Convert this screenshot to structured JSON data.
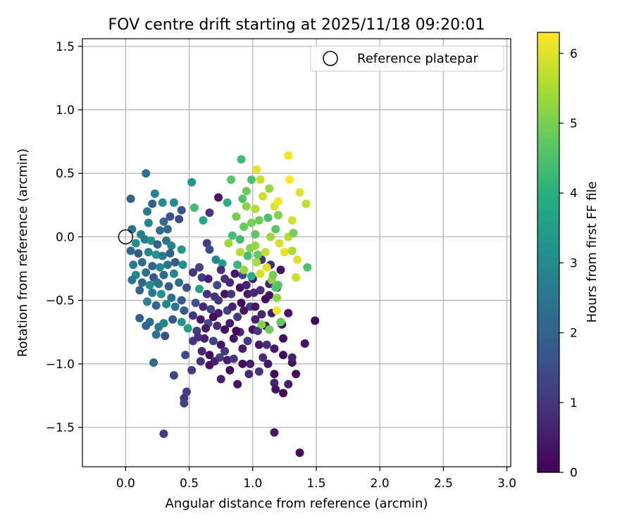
{
  "chart_data": {
    "type": "scatter",
    "title": "FOV centre drift starting at 2025/11/18 09:20:01",
    "xlabel": "Angular distance from reference (arcmin)",
    "ylabel": "Rotation from reference (arcmin)",
    "xlim": [
      -0.34,
      3.03
    ],
    "ylim": [
      -1.81,
      1.56
    ],
    "x_ticks": [
      0.0,
      0.5,
      1.0,
      1.5,
      2.0,
      2.5,
      3.0
    ],
    "x_tick_labels": [
      "0.0",
      "0.5",
      "1.0",
      "1.5",
      "2.0",
      "2.5",
      "3.0"
    ],
    "y_ticks": [
      -1.5,
      -1.0,
      -0.5,
      0.0,
      0.5,
      1.0,
      1.5
    ],
    "y_tick_labels": [
      "−1.5",
      "−1.0",
      "−0.5",
      "0.0",
      "0.5",
      "1.0",
      "1.5"
    ],
    "grid": true,
    "colorbar": {
      "label": "Hours from first FF file",
      "colormap": "viridis",
      "range": [
        0,
        6.3
      ],
      "ticks": [
        0,
        1,
        2,
        3,
        4,
        5,
        6
      ],
      "tick_labels": [
        "0",
        "1",
        "2",
        "3",
        "4",
        "5",
        "6"
      ]
    },
    "reference": {
      "label": "Reference platepar",
      "x": 0.0,
      "y": 0.0
    },
    "legend": {
      "position": "top-right",
      "entries": [
        "Reference platepar"
      ]
    },
    "points": [
      {
        "x": 0.16,
        "y": 0.5,
        "c": 2.4
      },
      {
        "x": 0.23,
        "y": 0.34,
        "c": 2.8
      },
      {
        "x": 0.04,
        "y": 0.3,
        "c": 2.0
      },
      {
        "x": 0.29,
        "y": 0.27,
        "c": 3.0
      },
      {
        "x": 0.38,
        "y": 0.27,
        "c": 3.1
      },
      {
        "x": 0.44,
        "y": 0.21,
        "c": 1.7
      },
      {
        "x": 0.21,
        "y": 0.26,
        "c": 1.9
      },
      {
        "x": 0.17,
        "y": 0.2,
        "c": 2.6
      },
      {
        "x": 0.18,
        "y": 0.11,
        "c": 2.9
      },
      {
        "x": 0.3,
        "y": 0.12,
        "c": 2.2
      },
      {
        "x": 0.35,
        "y": 0.16,
        "c": 1.6
      },
      {
        "x": 0.42,
        "y": 0.14,
        "c": 1.5
      },
      {
        "x": 0.27,
        "y": 0.05,
        "c": 2.3
      },
      {
        "x": 0.33,
        "y": 0.06,
        "c": 2.1
      },
      {
        "x": 0.05,
        "y": 0.06,
        "c": 2.5
      },
      {
        "x": 0.12,
        "y": 0.02,
        "c": 2.7
      },
      {
        "x": 0.08,
        "y": -0.05,
        "c": 3.2
      },
      {
        "x": 0.15,
        "y": -0.02,
        "c": 2.6
      },
      {
        "x": 0.2,
        "y": -0.03,
        "c": 3.1
      },
      {
        "x": 0.25,
        "y": -0.06,
        "c": 2.0
      },
      {
        "x": 0.32,
        "y": -0.03,
        "c": 2.4
      },
      {
        "x": 0.36,
        "y": -0.07,
        "c": 2.8
      },
      {
        "x": 0.04,
        "y": -0.11,
        "c": 2.2
      },
      {
        "x": 0.1,
        "y": -0.13,
        "c": 1.8
      },
      {
        "x": 0.18,
        "y": -0.12,
        "c": 2.9
      },
      {
        "x": 0.24,
        "y": -0.14,
        "c": 3.3
      },
      {
        "x": 0.29,
        "y": -0.15,
        "c": 2.6
      },
      {
        "x": 0.35,
        "y": -0.13,
        "c": 1.9
      },
      {
        "x": 0.44,
        "y": -0.1,
        "c": 3.4
      },
      {
        "x": 0.06,
        "y": -0.22,
        "c": 2.7
      },
      {
        "x": 0.13,
        "y": -0.2,
        "c": 2.3
      },
      {
        "x": 0.21,
        "y": -0.23,
        "c": 2.0
      },
      {
        "x": 0.27,
        "y": -0.24,
        "c": 3.0
      },
      {
        "x": 0.33,
        "y": -0.22,
        "c": 2.5
      },
      {
        "x": 0.39,
        "y": -0.2,
        "c": 1.7
      },
      {
        "x": 0.45,
        "y": -0.22,
        "c": 3.1
      },
      {
        "x": 0.08,
        "y": -0.3,
        "c": 2.9
      },
      {
        "x": 0.16,
        "y": -0.28,
        "c": 2.4
      },
      {
        "x": 0.22,
        "y": -0.32,
        "c": 1.6
      },
      {
        "x": 0.3,
        "y": -0.3,
        "c": 2.2
      },
      {
        "x": 0.38,
        "y": -0.29,
        "c": 2.8
      },
      {
        "x": 0.05,
        "y": -0.34,
        "c": 2.5
      },
      {
        "x": 0.13,
        "y": -0.36,
        "c": 2.1
      },
      {
        "x": 0.19,
        "y": -0.38,
        "c": 3.0
      },
      {
        "x": 0.26,
        "y": -0.37,
        "c": 2.7
      },
      {
        "x": 0.34,
        "y": -0.39,
        "c": 1.8
      },
      {
        "x": 0.42,
        "y": -0.36,
        "c": 2.3
      },
      {
        "x": 0.48,
        "y": -0.4,
        "c": 1.5
      },
      {
        "x": 0.11,
        "y": -0.42,
        "c": 2.0
      },
      {
        "x": 0.21,
        "y": -0.44,
        "c": 2.6
      },
      {
        "x": 0.28,
        "y": -0.45,
        "c": 3.2
      },
      {
        "x": 0.36,
        "y": -0.48,
        "c": 2.4
      },
      {
        "x": 0.44,
        "y": -0.5,
        "c": 1.9
      },
      {
        "x": 0.17,
        "y": -0.51,
        "c": 2.8
      },
      {
        "x": 0.24,
        "y": -0.54,
        "c": 2.2
      },
      {
        "x": 0.32,
        "y": -0.53,
        "c": 3.0
      },
      {
        "x": 0.39,
        "y": -0.55,
        "c": 2.5
      },
      {
        "x": 0.46,
        "y": -0.58,
        "c": 1.8
      },
      {
        "x": 0.11,
        "y": -0.64,
        "c": 1.9
      },
      {
        "x": 0.19,
        "y": -0.67,
        "c": 2.3
      },
      {
        "x": 0.26,
        "y": -0.71,
        "c": 2.6
      },
      {
        "x": 0.3,
        "y": -0.68,
        "c": 2.9
      },
      {
        "x": 0.37,
        "y": -0.65,
        "c": 1.7
      },
      {
        "x": 0.44,
        "y": -0.67,
        "c": 3.3
      },
      {
        "x": 0.49,
        "y": -0.72,
        "c": 3.5
      },
      {
        "x": 0.16,
        "y": -0.7,
        "c": 2.1
      },
      {
        "x": 0.24,
        "y": -0.77,
        "c": 2.4
      },
      {
        "x": 0.31,
        "y": -0.78,
        "c": 1.6
      },
      {
        "x": 0.22,
        "y": -0.99,
        "c": 2.2
      },
      {
        "x": 0.38,
        "y": -1.09,
        "c": 1.3
      },
      {
        "x": 0.3,
        "y": -1.55,
        "c": 1.1
      },
      {
        "x": 0.25,
        "y": -0.36,
        "c": 2.5
      },
      {
        "x": 0.52,
        "y": 0.43,
        "c": 3.3
      },
      {
        "x": 0.54,
        "y": 0.23,
        "c": 4.4
      },
      {
        "x": 0.61,
        "y": 0.13,
        "c": 3.8
      },
      {
        "x": 0.66,
        "y": 0.19,
        "c": 1.0
      },
      {
        "x": 0.73,
        "y": 0.31,
        "c": 0.4
      },
      {
        "x": 0.64,
        "y": -0.05,
        "c": 1.1
      },
      {
        "x": 0.58,
        "y": -0.24,
        "c": 1.3
      },
      {
        "x": 0.66,
        "y": -0.1,
        "c": 1.5
      },
      {
        "x": 0.71,
        "y": -0.18,
        "c": 2.9
      },
      {
        "x": 0.76,
        "y": -0.21,
        "c": 3.5
      },
      {
        "x": 0.75,
        "y": -0.26,
        "c": 0.8
      },
      {
        "x": 0.53,
        "y": -0.28,
        "c": 1.0
      },
      {
        "x": 0.6,
        "y": -0.32,
        "c": 1.2
      },
      {
        "x": 0.65,
        "y": -0.33,
        "c": 0.6
      },
      {
        "x": 0.72,
        "y": -0.38,
        "c": 1.4
      },
      {
        "x": 0.58,
        "y": -0.41,
        "c": 3.7
      },
      {
        "x": 0.64,
        "y": -0.45,
        "c": 0.9
      },
      {
        "x": 0.7,
        "y": -0.47,
        "c": 1.1
      },
      {
        "x": 0.78,
        "y": -0.45,
        "c": 0.3
      },
      {
        "x": 0.55,
        "y": -0.52,
        "c": 1.6
      },
      {
        "x": 0.61,
        "y": -0.55,
        "c": 0.7
      },
      {
        "x": 0.67,
        "y": -0.57,
        "c": 1.2
      },
      {
        "x": 0.73,
        "y": -0.6,
        "c": 0.5
      },
      {
        "x": 0.8,
        "y": -0.58,
        "c": 1.3
      },
      {
        "x": 0.53,
        "y": -0.62,
        "c": 1.0
      },
      {
        "x": 0.59,
        "y": -0.65,
        "c": 0.4
      },
      {
        "x": 0.65,
        "y": -0.68,
        "c": 1.5
      },
      {
        "x": 0.72,
        "y": -0.7,
        "c": 0.8
      },
      {
        "x": 0.78,
        "y": -0.73,
        "c": 0.2
      },
      {
        "x": 0.56,
        "y": -0.74,
        "c": 1.1
      },
      {
        "x": 0.62,
        "y": -0.8,
        "c": 0.6
      },
      {
        "x": 0.69,
        "y": -0.82,
        "c": 1.3
      },
      {
        "x": 0.75,
        "y": -0.85,
        "c": 0.4
      },
      {
        "x": 0.53,
        "y": -0.82,
        "c": 1.0
      },
      {
        "x": 0.6,
        "y": -0.9,
        "c": 0.7
      },
      {
        "x": 0.66,
        "y": -0.93,
        "c": 0.3
      },
      {
        "x": 0.74,
        "y": -0.95,
        "c": 1.2
      },
      {
        "x": 0.8,
        "y": -0.97,
        "c": 0.5
      },
      {
        "x": 0.59,
        "y": -0.98,
        "c": 0.9
      },
      {
        "x": 0.66,
        "y": -1.01,
        "c": 0.3
      },
      {
        "x": 0.52,
        "y": -1.05,
        "c": 1.1
      },
      {
        "x": 0.75,
        "y": -1.12,
        "c": 0.6
      },
      {
        "x": 0.82,
        "y": -1.05,
        "c": 0.2
      },
      {
        "x": 0.48,
        "y": -1.22,
        "c": 1.2
      },
      {
        "x": 0.46,
        "y": -1.27,
        "c": 1.0
      },
      {
        "x": 0.46,
        "y": -1.31,
        "c": 1.3
      },
      {
        "x": 0.47,
        "y": -0.93,
        "c": 1.5
      },
      {
        "x": 0.78,
        "y": -0.9,
        "c": 1.0
      },
      {
        "x": 0.85,
        "y": -0.8,
        "c": 0.4
      },
      {
        "x": 0.9,
        "y": -0.75,
        "c": 0.8
      },
      {
        "x": 0.82,
        "y": -0.68,
        "c": 0.5
      },
      {
        "x": 0.88,
        "y": -0.63,
        "c": 1.1
      },
      {
        "x": 0.84,
        "y": -0.55,
        "c": 0.6
      },
      {
        "x": 0.91,
        "y": -0.52,
        "c": 0.2
      },
      {
        "x": 0.83,
        "y": -0.45,
        "c": 1.0
      },
      {
        "x": 0.9,
        "y": -0.4,
        "c": 0.3
      },
      {
        "x": 0.82,
        "y": -0.36,
        "c": 0.7
      },
      {
        "x": 0.92,
        "y": -0.3,
        "c": 1.4
      },
      {
        "x": 0.96,
        "y": -0.45,
        "c": 0.5
      },
      {
        "x": 0.98,
        "y": -0.55,
        "c": 1.2
      },
      {
        "x": 1.02,
        "y": -0.65,
        "c": 0.6
      },
      {
        "x": 1.0,
        "y": -0.73,
        "c": 0.3
      },
      {
        "x": 0.96,
        "y": -0.82,
        "c": 1.0
      },
      {
        "x": 1.05,
        "y": -0.85,
        "c": 0.4
      },
      {
        "x": 1.08,
        "y": -0.95,
        "c": 0.8
      },
      {
        "x": 0.98,
        "y": -1.0,
        "c": 0.5
      },
      {
        "x": 0.92,
        "y": -1.0,
        "c": 0.2
      },
      {
        "x": 0.97,
        "y": -1.08,
        "c": 0.7
      },
      {
        "x": 0.88,
        "y": -1.16,
        "c": 0.3
      },
      {
        "x": 1.05,
        "y": -1.06,
        "c": 0.9
      },
      {
        "x": 1.12,
        "y": -1.0,
        "c": 0.4
      },
      {
        "x": 1.17,
        "y": -1.08,
        "c": 0.2
      },
      {
        "x": 1.17,
        "y": -1.15,
        "c": 0.6
      },
      {
        "x": 1.18,
        "y": -1.2,
        "c": 0.3
      },
      {
        "x": 1.24,
        "y": -1.23,
        "c": 0.1
      },
      {
        "x": 1.28,
        "y": -1.16,
        "c": 0.5
      },
      {
        "x": 1.34,
        "y": -1.08,
        "c": 0.2
      },
      {
        "x": 1.31,
        "y": -0.99,
        "c": 0.3
      },
      {
        "x": 1.31,
        "y": -0.95,
        "c": 0.6
      },
      {
        "x": 1.24,
        "y": -0.93,
        "c": 0.2
      },
      {
        "x": 1.17,
        "y": -0.88,
        "c": 0.4
      },
      {
        "x": 1.11,
        "y": -0.85,
        "c": 0.8
      },
      {
        "x": 1.04,
        "y": -0.74,
        "c": 1.0
      },
      {
        "x": 1.1,
        "y": -0.7,
        "c": 0.3
      },
      {
        "x": 1.15,
        "y": -0.6,
        "c": 0.5
      },
      {
        "x": 1.23,
        "y": -0.69,
        "c": 0.2
      },
      {
        "x": 1.28,
        "y": -0.6,
        "c": 0.4
      },
      {
        "x": 1.41,
        "y": -0.84,
        "c": 0.3
      },
      {
        "x": 1.49,
        "y": -0.66,
        "c": 0.1
      },
      {
        "x": 1.24,
        "y": -0.8,
        "c": 0.2
      },
      {
        "x": 1.17,
        "y": -1.54,
        "c": 0.4
      },
      {
        "x": 1.37,
        "y": -1.7,
        "c": 0.2
      },
      {
        "x": 1.13,
        "y": -0.37,
        "c": 0.6
      },
      {
        "x": 1.06,
        "y": -0.42,
        "c": 0.9
      },
      {
        "x": 1.1,
        "y": -0.49,
        "c": 0.2
      },
      {
        "x": 1.02,
        "y": -0.55,
        "c": 0.4
      },
      {
        "x": 1.07,
        "y": -0.61,
        "c": 0.7
      },
      {
        "x": 1.13,
        "y": -0.46,
        "c": 0.3
      },
      {
        "x": 1.19,
        "y": -0.4,
        "c": 0.5
      },
      {
        "x": 1.22,
        "y": -0.26,
        "c": 0.3
      },
      {
        "x": 1.14,
        "y": -0.22,
        "c": 0.8
      },
      {
        "x": 1.07,
        "y": -0.18,
        "c": 1.0
      },
      {
        "x": 1.0,
        "y": -0.33,
        "c": 0.2
      },
      {
        "x": 0.95,
        "y": -0.38,
        "c": 0.6
      },
      {
        "x": 0.86,
        "y": -0.29,
        "c": 0.4
      },
      {
        "x": 0.78,
        "y": -0.33,
        "c": 0.9
      },
      {
        "x": 0.73,
        "y": -0.5,
        "c": 1.1
      },
      {
        "x": 0.69,
        "y": -0.63,
        "c": 0.2
      },
      {
        "x": 0.63,
        "y": -0.72,
        "c": 0.5
      },
      {
        "x": 0.57,
        "y": -0.79,
        "c": 0.8
      },
      {
        "x": 0.7,
        "y": -0.98,
        "c": 0.6
      },
      {
        "x": 0.85,
        "y": -0.96,
        "c": 1.0
      },
      {
        "x": 0.92,
        "y": -0.88,
        "c": 0.5
      },
      {
        "x": 0.87,
        "y": -0.74,
        "c": 0.1
      },
      {
        "x": 0.93,
        "y": -0.58,
        "c": 0.4
      },
      {
        "x": 1.01,
        "y": -0.44,
        "c": 0.7
      },
      {
        "x": 0.8,
        "y": 0.27,
        "c": 4.0
      },
      {
        "x": 0.83,
        "y": 0.45,
        "c": 4.6
      },
      {
        "x": 0.91,
        "y": 0.61,
        "c": 4.3
      },
      {
        "x": 0.87,
        "y": 0.16,
        "c": 5.0
      },
      {
        "x": 0.84,
        "y": 0.01,
        "c": 4.4
      },
      {
        "x": 0.81,
        "y": -0.05,
        "c": 5.4
      },
      {
        "x": 0.93,
        "y": 0.08,
        "c": 4.8
      },
      {
        "x": 0.92,
        "y": 0.3,
        "c": 4.6
      },
      {
        "x": 0.95,
        "y": 0.24,
        "c": 5.2
      },
      {
        "x": 0.99,
        "y": 0.45,
        "c": 4.5
      },
      {
        "x": 1.03,
        "y": 0.53,
        "c": 6.1
      },
      {
        "x": 1.06,
        "y": 0.45,
        "c": 5.8
      },
      {
        "x": 1.05,
        "y": 0.13,
        "c": 4.9
      },
      {
        "x": 1.02,
        "y": 0.02,
        "c": 4.7
      },
      {
        "x": 0.98,
        "y": -0.09,
        "c": 5.1
      },
      {
        "x": 1.04,
        "y": -0.14,
        "c": 4.8
      },
      {
        "x": 0.96,
        "y": -0.15,
        "c": 4.4
      },
      {
        "x": 0.9,
        "y": -0.12,
        "c": 5.6
      },
      {
        "x": 0.88,
        "y": -0.22,
        "c": 4.2
      },
      {
        "x": 0.93,
        "y": -0.26,
        "c": 5.3
      },
      {
        "x": 0.99,
        "y": -0.31,
        "c": 4.0
      },
      {
        "x": 1.03,
        "y": -0.2,
        "c": 5.5
      },
      {
        "x": 1.1,
        "y": -0.12,
        "c": 5.7
      },
      {
        "x": 1.11,
        "y": -0.24,
        "c": 6.0
      },
      {
        "x": 1.15,
        "y": -0.34,
        "c": 5.2
      },
      {
        "x": 1.18,
        "y": -0.4,
        "c": 4.6
      },
      {
        "x": 1.13,
        "y": 0.38,
        "c": 5.3
      },
      {
        "x": 1.12,
        "y": 0.15,
        "c": 4.5
      },
      {
        "x": 1.17,
        "y": 0.24,
        "c": 6.0
      },
      {
        "x": 1.2,
        "y": 0.17,
        "c": 5.1
      },
      {
        "x": 1.2,
        "y": 0.28,
        "c": 6.2
      },
      {
        "x": 1.18,
        "y": 0.06,
        "c": 4.7
      },
      {
        "x": 1.08,
        "y": 0.32,
        "c": 5.8
      },
      {
        "x": 1.02,
        "y": 0.22,
        "c": 5.6
      },
      {
        "x": 0.95,
        "y": 0.36,
        "c": 4.9
      },
      {
        "x": 0.9,
        "y": -0.02,
        "c": 4.3
      },
      {
        "x": 1.14,
        "y": 0.0,
        "c": 5.4
      },
      {
        "x": 1.21,
        "y": -0.05,
        "c": 5.9
      },
      {
        "x": 1.25,
        "y": -0.12,
        "c": 6.1
      },
      {
        "x": 1.28,
        "y": 0.0,
        "c": 5.6
      },
      {
        "x": 1.28,
        "y": 0.64,
        "c": 6.2
      },
      {
        "x": 1.29,
        "y": 0.45,
        "c": 6.3
      },
      {
        "x": 1.37,
        "y": 0.35,
        "c": 6.0
      },
      {
        "x": 1.42,
        "y": 0.26,
        "c": 5.7
      },
      {
        "x": 1.31,
        "y": 0.13,
        "c": 5.9
      },
      {
        "x": 1.32,
        "y": 0.03,
        "c": 5.0
      },
      {
        "x": 1.31,
        "y": -0.11,
        "c": 5.5
      },
      {
        "x": 1.35,
        "y": -0.18,
        "c": 6.0
      },
      {
        "x": 1.43,
        "y": -0.24,
        "c": 4.5
      },
      {
        "x": 1.34,
        "y": -0.32,
        "c": 5.8
      },
      {
        "x": 1.2,
        "y": -0.38,
        "c": 4.6
      },
      {
        "x": 1.19,
        "y": -0.48,
        "c": 5.2
      },
      {
        "x": 1.19,
        "y": -0.58,
        "c": 6.2
      },
      {
        "x": 1.22,
        "y": -0.67,
        "c": 4.8
      },
      {
        "x": 1.13,
        "y": -0.73,
        "c": 4.9
      },
      {
        "x": 1.07,
        "y": -0.69,
        "c": 5.1
      },
      {
        "x": 1.16,
        "y": -0.3,
        "c": 5.0
      },
      {
        "x": 1.06,
        "y": -0.29,
        "c": 5.9
      },
      {
        "x": 1.02,
        "y": -0.07,
        "c": 5.3
      },
      {
        "x": 0.99,
        "y": 0.11,
        "c": 5.0
      }
    ]
  }
}
